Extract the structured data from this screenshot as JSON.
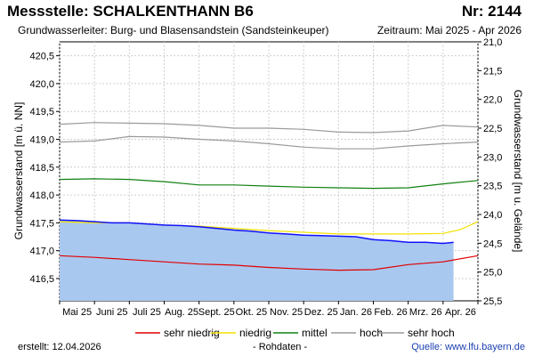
{
  "header": {
    "title": "Messstelle: SCHALKENTHANN B6",
    "nr": "Nr: 2144",
    "aquifer": "Grundwasserleiter:   Burg- und Blasensandstein (Sandsteinkeuper)",
    "period": "Zeitraum: Mai 2025 - Apr 2026"
  },
  "footer": {
    "created": "erstellt:  12.04.2026",
    "raw": "- Rohdaten -",
    "source": "Quelle:  www.lfu.bayern.de"
  },
  "colors": {
    "area": "#a9c8ef",
    "measured": "#1010ff",
    "sehr_niedrig": "#e00000",
    "niedrig": "#f2e200",
    "mittel": "#108010",
    "hoch": "#9a9a9a",
    "sehr_hoch": "#9a9a9a",
    "grid": "#cfcfcf"
  },
  "chart_data": {
    "type": "line",
    "title": "Messstelle: SCHALKENTHANN B6",
    "ylabel": "Grundwasserstand [m ü. NN]",
    "y2label": "Grundwasserstand [m u. Gelände]",
    "ylim": [
      416.1,
      420.75
    ],
    "y2lim": [
      25.5,
      21.0
    ],
    "yticks": [
      "420,5",
      "420,0",
      "419,5",
      "419,0",
      "418,5",
      "418,0",
      "417,5",
      "417,0",
      "416,5"
    ],
    "y2ticks": [
      "21,0",
      "21,5",
      "22,0",
      "22,5",
      "23,0",
      "23,5",
      "24,0",
      "24,5",
      "25,0",
      "25,5"
    ],
    "xlim": [
      0,
      12
    ],
    "xticks": [
      "Mai 25",
      "Juni 25",
      "Juli 25",
      "Aug. 25",
      "Sept. 25",
      "Okt. 25",
      "Nov. 25",
      "Dez. 25",
      "Jan. 26",
      "Feb. 26",
      "Mrz. 26",
      "Apr. 26"
    ],
    "series": [
      {
        "name": "sehr hoch",
        "key": "sehr_hoch",
        "x": [
          0,
          1,
          2,
          3,
          4,
          5,
          6,
          7,
          8,
          9,
          10,
          11,
          12
        ],
        "values": [
          419.27,
          419.3,
          419.29,
          419.28,
          419.25,
          419.2,
          419.2,
          419.18,
          419.13,
          419.12,
          419.15,
          419.25,
          419.22
        ]
      },
      {
        "name": "hoch",
        "key": "hoch",
        "x": [
          0,
          1,
          2,
          3,
          4,
          5,
          6,
          7,
          8,
          9,
          10,
          11,
          12
        ],
        "values": [
          418.95,
          418.97,
          419.05,
          419.04,
          419.0,
          418.97,
          418.92,
          418.86,
          418.83,
          418.83,
          418.88,
          418.92,
          418.95
        ]
      },
      {
        "name": "mittel",
        "key": "mittel",
        "x": [
          0,
          1,
          2,
          3,
          4,
          5,
          6,
          7,
          8,
          9,
          10,
          11,
          12
        ],
        "values": [
          418.28,
          418.29,
          418.28,
          418.24,
          418.18,
          418.18,
          418.16,
          418.14,
          418.13,
          418.12,
          418.13,
          418.2,
          418.26
        ]
      },
      {
        "name": "niedrig",
        "key": "niedrig",
        "x": [
          0,
          1,
          2,
          3,
          4,
          5,
          6,
          7,
          8,
          9,
          10,
          11,
          11.5,
          12
        ],
        "values": [
          417.52,
          417.5,
          417.5,
          417.46,
          417.44,
          417.4,
          417.36,
          417.33,
          417.3,
          417.3,
          417.3,
          417.31,
          417.38,
          417.52
        ]
      },
      {
        "name": "sehr niedrig",
        "key": "sehr_niedrig",
        "x": [
          0,
          1,
          2,
          3,
          4,
          5,
          6,
          7,
          8,
          9,
          10,
          11,
          12
        ],
        "values": [
          416.91,
          416.88,
          416.84,
          416.8,
          416.76,
          416.74,
          416.7,
          416.67,
          416.65,
          416.66,
          416.75,
          416.8,
          416.91
        ]
      },
      {
        "name": "Messwerte",
        "key": "measured",
        "x": [
          0,
          0.5,
          1,
          1.5,
          2,
          2.5,
          3,
          3.5,
          4,
          4.5,
          5,
          5.5,
          6,
          6.5,
          7,
          7.5,
          8,
          8.5,
          9,
          9.5,
          10,
          10.5,
          11,
          11.3
        ],
        "values": [
          417.55,
          417.54,
          417.52,
          417.5,
          417.5,
          417.48,
          417.46,
          417.45,
          417.43,
          417.4,
          417.37,
          417.35,
          417.32,
          417.3,
          417.28,
          417.27,
          417.26,
          417.25,
          417.2,
          417.18,
          417.15,
          417.15,
          417.13,
          417.15
        ]
      }
    ],
    "legend": {
      "position": "bottom",
      "items": [
        {
          "label": "sehr niedrig",
          "key": "sehr_niedrig"
        },
        {
          "label": "niedrig",
          "key": "niedrig"
        },
        {
          "label": "mittel",
          "key": "mittel"
        },
        {
          "label": "hoch",
          "key": "hoch"
        },
        {
          "label": "sehr hoch",
          "key": "sehr_hoch"
        }
      ]
    }
  }
}
